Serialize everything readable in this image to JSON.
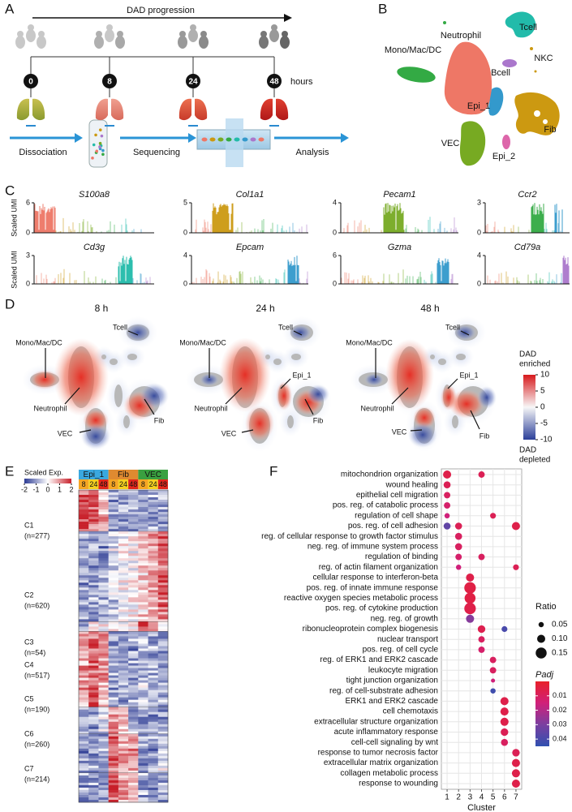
{
  "panels": {
    "A": {
      "letter": "A",
      "arrow_label": "DAD progression",
      "timepoints": [
        "0",
        "8",
        "24",
        "48"
      ],
      "unit": "hours",
      "steps": [
        "Dissociation",
        "Sequencing",
        "Analysis"
      ]
    },
    "B": {
      "letter": "B",
      "clusters": [
        "Neutrophil",
        "Tcell",
        "Mono/Mac/DC",
        "NKC",
        "Bcell",
        "Epi_1",
        "Fib",
        "VEC",
        "Epi_2"
      ]
    },
    "C": {
      "letter": "C",
      "y_label": "Scaled UMI",
      "genes": [
        {
          "name": "S100a8",
          "yticks": [
            0,
            6
          ]
        },
        {
          "name": "Col1a1",
          "yticks": [
            0,
            5
          ]
        },
        {
          "name": "Pecam1",
          "yticks": [
            0,
            4
          ]
        },
        {
          "name": "Ccr2",
          "yticks": [
            0,
            3
          ]
        },
        {
          "name": "Cd3g",
          "yticks": [
            0,
            3
          ]
        },
        {
          "name": "Epcam",
          "yticks": [
            0,
            4
          ]
        },
        {
          "name": "Gzma",
          "yticks": [
            0,
            6
          ]
        },
        {
          "name": "Cd79a",
          "yticks": [
            0,
            4
          ]
        }
      ]
    },
    "D": {
      "letter": "D",
      "maps": [
        {
          "title": "8 h",
          "labels": [
            "Tcell",
            "Mono/Mac/DC",
            "Neutrophil",
            "Fib",
            "VEC"
          ]
        },
        {
          "title": "24 h",
          "labels": [
            "Tcell",
            "Mono/Mac/DC",
            "Epi_1",
            "Neutrophil",
            "Fib",
            "VEC"
          ]
        },
        {
          "title": "48 h",
          "labels": [
            "Tcell",
            "Mono/Mac/DC",
            "Epi_1",
            "Neutrophil",
            "Fib",
            "VEC"
          ]
        }
      ],
      "colorbar": {
        "ticks": [
          10,
          5,
          0,
          -5,
          -10
        ],
        "top_label": [
          "DAD",
          "enriched"
        ],
        "bottom_label": [
          "DAD",
          "depleted"
        ]
      }
    },
    "E": {
      "letter": "E",
      "legend_title": "Scaled Exp.",
      "legend_ticks": [
        -2,
        -1,
        0,
        1,
        2
      ],
      "groups": [
        {
          "name": "Epi_1",
          "color": "#3aa8e0"
        },
        {
          "name": "Fib",
          "color": "#e08a30"
        },
        {
          "name": "VEC",
          "color": "#3aa040"
        }
      ],
      "times": [
        {
          "label": "8",
          "color": "#f5a623"
        },
        {
          "label": "24",
          "color": "#f5d020"
        },
        {
          "label": "48",
          "color": "#e2261c"
        }
      ],
      "clusters": [
        {
          "name": "C1",
          "n": "(n=277)"
        },
        {
          "name": "C2",
          "n": "(n=620)"
        },
        {
          "name": "C3",
          "n": "(n=54)"
        },
        {
          "name": "C4",
          "n": "(n=517)"
        },
        {
          "name": "C5",
          "n": "(n=190)"
        },
        {
          "name": "C6",
          "n": "(n=260)"
        },
        {
          "name": "C7",
          "n": "(n=214)"
        }
      ]
    },
    "F": {
      "letter": "F"
    }
  },
  "chart_data": {
    "type": "dot",
    "x_label": "Cluster",
    "xlim": [
      0.5,
      7.5
    ],
    "xticks": [
      1,
      2,
      3,
      4,
      5,
      6,
      7
    ],
    "categories": [
      "mitochondrion organization",
      "wound healing",
      "epithelial cell migration",
      "pos. reg. of catabolic process",
      "regulation of cell shape",
      "pos. reg. of cell adhesion",
      "reg. of cellular response to growth factor stimulus",
      "neg. reg. of immune system process",
      "regulation of binding",
      "reg. of actin filament organization",
      "cellular response to interferon-beta",
      "pos. reg. of innate immune response",
      "reactive oxygen species metabolic process",
      "pos. reg. of cytokine production",
      "neg. reg. of growth",
      "ribonucleoprotein complex biogenesis",
      "nuclear transport",
      "pos. reg. of cell cycle",
      "reg. of ERK1 and ERK2 cascade",
      "leukocyte migration",
      "tight junction organization",
      "reg. of cell-substrate adhesion",
      "ERK1 and ERK2 cascade",
      "cell chemotaxis",
      "extracellular structure organization",
      "acute inflammatory response",
      "cell-cell signaling by wnt",
      "response to tumor necrosis factor",
      "extracellular matrix organization",
      "collagen metabolic process",
      "response to wounding"
    ],
    "points": {
      "term": [
        "mitochondrion organization",
        "mitochondrion organization",
        "wound healing",
        "epithelial cell migration",
        "pos. reg. of catabolic process",
        "regulation of cell shape",
        "regulation of cell shape",
        "pos. reg. of cell adhesion",
        "pos. reg. of cell adhesion",
        "pos. reg. of cell adhesion",
        "reg. of cellular response to growth factor stimulus",
        "neg. reg. of immune system process",
        "regulation of binding",
        "regulation of binding",
        "reg. of actin filament organization",
        "reg. of actin filament organization",
        "cellular response to interferon-beta",
        "pos. reg. of innate immune response",
        "reactive oxygen species metabolic process",
        "pos. reg. of cytokine production",
        "neg. reg. of growth",
        "ribonucleoprotein complex biogenesis",
        "ribonucleoprotein complex biogenesis",
        "nuclear transport",
        "pos. reg. of cell cycle",
        "reg. of ERK1 and ERK2 cascade",
        "leukocyte migration",
        "tight junction organization",
        "reg. of cell-substrate adhesion",
        "ERK1 and ERK2 cascade",
        "cell chemotaxis",
        "extracellular structure organization",
        "acute inflammatory response",
        "cell-cell signaling by wnt",
        "response to tumor necrosis factor",
        "extracellular matrix organization",
        "collagen metabolic process",
        "response to wounding"
      ],
      "cluster": [
        1,
        4,
        1,
        1,
        1,
        1,
        5,
        1,
        2,
        7,
        2,
        2,
        2,
        4,
        2,
        7,
        3,
        3,
        3,
        3,
        3,
        4,
        6,
        4,
        4,
        5,
        5,
        5,
        5,
        6,
        6,
        6,
        6,
        6,
        7,
        7,
        7,
        7
      ],
      "ratio": [
        0.1,
        0.07,
        0.08,
        0.07,
        0.07,
        0.05,
        0.06,
        0.08,
        0.08,
        0.1,
        0.08,
        0.08,
        0.07,
        0.07,
        0.05,
        0.06,
        0.1,
        0.16,
        0.15,
        0.16,
        0.1,
        0.09,
        0.06,
        0.07,
        0.07,
        0.07,
        0.07,
        0.03,
        0.05,
        0.1,
        0.1,
        0.1,
        0.09,
        0.08,
        0.09,
        0.1,
        0.1,
        0.1
      ],
      "padj": [
        0.006,
        0.008,
        0.008,
        0.01,
        0.012,
        0.015,
        0.008,
        0.035,
        0.008,
        0.006,
        0.01,
        0.01,
        0.012,
        0.01,
        0.015,
        0.008,
        0.006,
        0.005,
        0.005,
        0.006,
        0.028,
        0.007,
        0.04,
        0.01,
        0.012,
        0.01,
        0.01,
        0.015,
        0.042,
        0.006,
        0.006,
        0.006,
        0.008,
        0.01,
        0.008,
        0.006,
        0.006,
        0.006
      ]
    },
    "size_legend": {
      "title": "Ratio",
      "values": [
        0.05,
        {
          "value": 0.1,
          "label": "0.10"
        },
        0.15
      ]
    },
    "color_legend": {
      "title": "Padj",
      "lim": [
        0,
        0.045
      ],
      "ticks": [
        0.01,
        0.02,
        0.03,
        0.04
      ],
      "colors": [
        "#e8202a",
        "#d0207a",
        "#7a3fa0",
        "#3050b0"
      ]
    }
  }
}
